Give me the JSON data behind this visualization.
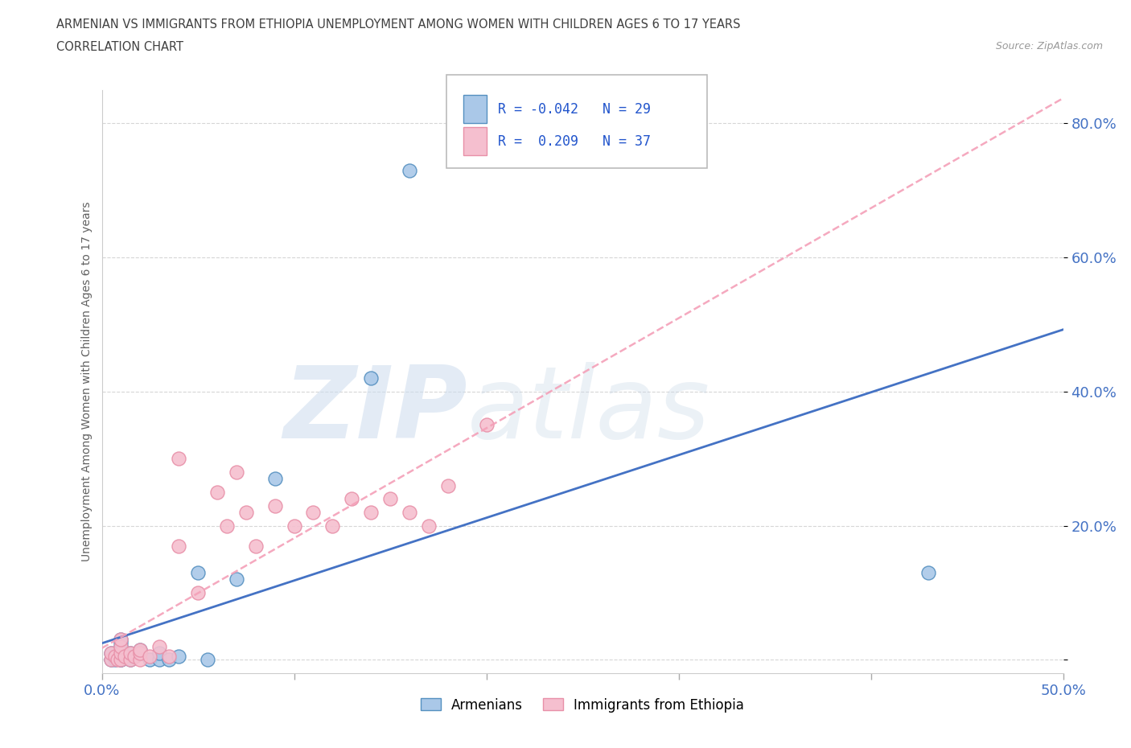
{
  "title_line1": "ARMENIAN VS IMMIGRANTS FROM ETHIOPIA UNEMPLOYMENT AMONG WOMEN WITH CHILDREN AGES 6 TO 17 YEARS",
  "title_line2": "CORRELATION CHART",
  "source_text": "Source: ZipAtlas.com",
  "ylabel": "Unemployment Among Women with Children Ages 6 to 17 years",
  "xlim": [
    0.0,
    0.5
  ],
  "ylim": [
    -0.02,
    0.85
  ],
  "x_ticks": [
    0.0,
    0.1,
    0.2,
    0.3,
    0.4,
    0.5
  ],
  "y_ticks": [
    0.0,
    0.2,
    0.4,
    0.6,
    0.8
  ],
  "watermark_zip": "ZIP",
  "watermark_atlas": "atlas",
  "armenian_color": "#aac8e8",
  "armenian_edge_color": "#5590c0",
  "ethiopia_color": "#f5bfcf",
  "ethiopia_edge_color": "#e890a8",
  "armenian_trend_color": "#4472c4",
  "ethiopia_trend_color": "#f4a0b8",
  "armenian_x": [
    0.005,
    0.005,
    0.007,
    0.008,
    0.01,
    0.01,
    0.01,
    0.01,
    0.01,
    0.01,
    0.01,
    0.012,
    0.015,
    0.015,
    0.017,
    0.02,
    0.02,
    0.025,
    0.03,
    0.03,
    0.035,
    0.04,
    0.05,
    0.055,
    0.07,
    0.09,
    0.14,
    0.16,
    0.43
  ],
  "armenian_y": [
    0.0,
    0.01,
    0.0,
    0.005,
    0.0,
    0.0,
    0.01,
    0.015,
    0.02,
    0.025,
    0.03,
    0.005,
    0.0,
    0.01,
    0.005,
    0.01,
    0.015,
    0.0,
    0.0,
    0.01,
    0.0,
    0.005,
    0.13,
    0.0,
    0.12,
    0.27,
    0.42,
    0.73,
    0.13
  ],
  "ethiopia_x": [
    0.005,
    0.005,
    0.007,
    0.008,
    0.01,
    0.01,
    0.01,
    0.01,
    0.012,
    0.015,
    0.015,
    0.017,
    0.02,
    0.02,
    0.02,
    0.025,
    0.03,
    0.035,
    0.04,
    0.04,
    0.05,
    0.06,
    0.065,
    0.07,
    0.075,
    0.08,
    0.09,
    0.1,
    0.11,
    0.12,
    0.13,
    0.14,
    0.15,
    0.16,
    0.17,
    0.18,
    0.2
  ],
  "ethiopia_y": [
    0.0,
    0.01,
    0.005,
    0.0,
    0.0,
    0.01,
    0.02,
    0.03,
    0.005,
    0.0,
    0.01,
    0.005,
    0.0,
    0.01,
    0.015,
    0.005,
    0.02,
    0.005,
    0.17,
    0.3,
    0.1,
    0.25,
    0.2,
    0.28,
    0.22,
    0.17,
    0.23,
    0.2,
    0.22,
    0.2,
    0.24,
    0.22,
    0.24,
    0.22,
    0.2,
    0.26,
    0.35
  ],
  "grid_color": "#cccccc",
  "background_color": "#ffffff",
  "title_color": "#404040",
  "axis_label_color": "#606060",
  "tick_color": "#4472c4"
}
